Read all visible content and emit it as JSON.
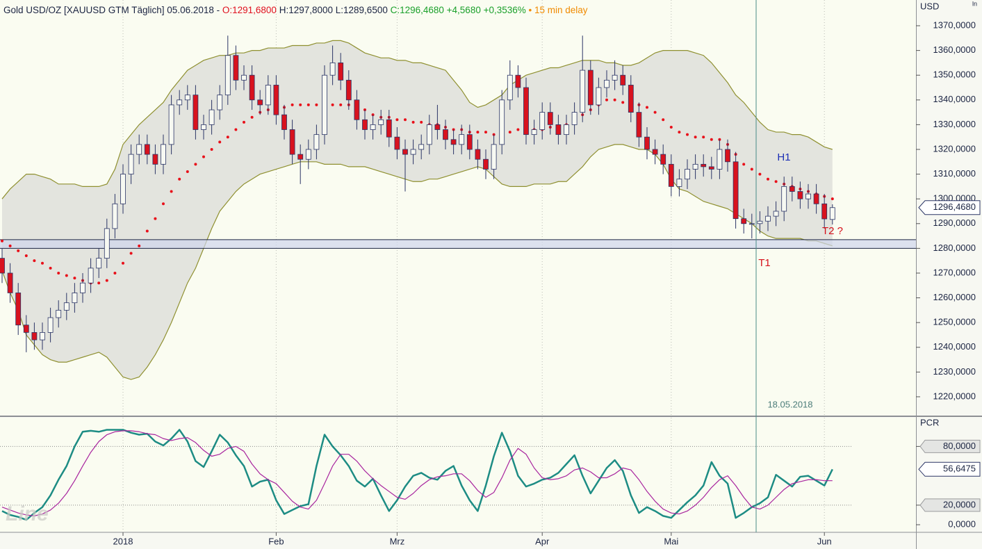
{
  "header": {
    "instrument": "Gold USD/OZ [XAUUSD GTM Täglich] 05.06.2018 - ",
    "open": "O:1291,6800 ",
    "high_low": "H:1297,8000 L:1289,6500 ",
    "change": "C:1296,4680 +4,5680 +0,3536% ",
    "delay": "• 15 min delay"
  },
  "axis_mode_label": "ln",
  "watermark": "Line",
  "annotations": {
    "h1": "H1",
    "t1": "T1",
    "t2": "T2 ?",
    "date": "18.05.2018"
  },
  "chart_data": [
    {
      "type": "candlestick",
      "y_axis_label": "USD",
      "categories": [
        null,
        null,
        null,
        null,
        null,
        null,
        null,
        null,
        null,
        null,
        null,
        null,
        null,
        null,
        null,
        "2018",
        null,
        null,
        null,
        null,
        null,
        null,
        null,
        null,
        null,
        null,
        null,
        null,
        null,
        null,
        null,
        null,
        null,
        null,
        "Feb",
        null,
        null,
        null,
        null,
        null,
        null,
        null,
        null,
        null,
        null,
        null,
        null,
        null,
        null,
        "Mrz",
        null,
        null,
        null,
        null,
        null,
        null,
        null,
        null,
        null,
        null,
        null,
        null,
        null,
        null,
        null,
        null,
        null,
        "Apr",
        null,
        null,
        null,
        null,
        null,
        null,
        null,
        null,
        null,
        null,
        null,
        null,
        null,
        null,
        null,
        "Mai",
        null,
        null,
        null,
        null,
        null,
        null,
        null,
        null,
        null,
        null,
        null,
        null,
        null,
        null,
        null,
        null,
        null,
        null,
        "Jun",
        null
      ],
      "open": [
        1276,
        1270,
        1262,
        1249,
        1246,
        1243,
        1246,
        1252,
        1255,
        1258,
        1262,
        1266,
        1272,
        1276,
        1288,
        1298,
        1310,
        1318,
        1322,
        1318,
        1314,
        1322,
        1338,
        1340,
        1342,
        1328,
        1330,
        1336,
        1342,
        1358,
        1348,
        1350,
        1340,
        1338,
        1346,
        1334,
        1328,
        1318,
        1316,
        1320,
        1326,
        1350,
        1355,
        1348,
        1340,
        1332,
        1328,
        1330,
        1332,
        1325,
        1320,
        1318,
        1320,
        1322,
        1330,
        1328,
        1324,
        1322,
        1326,
        1320,
        1316,
        1312,
        1322,
        1340,
        1350,
        1345,
        1326,
        1328,
        1335,
        1330,
        1326,
        1330,
        1335,
        1352,
        1338,
        1345,
        1348,
        1350,
        1346,
        1335,
        1325,
        1320,
        1318,
        1314,
        1305,
        1308,
        1312,
        1314,
        1313,
        1312,
        1320,
        1315,
        1292,
        1290,
        1290,
        1291,
        1293,
        1295,
        1305,
        1303,
        1300,
        1302,
        1298,
        1291.68
      ],
      "high": [
        1280,
        1274,
        1266,
        1253,
        1250,
        1250,
        1256,
        1259,
        1262,
        1266,
        1270,
        1276,
        1280,
        1292,
        1302,
        1314,
        1322,
        1326,
        1326,
        1322,
        1326,
        1342,
        1344,
        1346,
        1346,
        1334,
        1340,
        1346,
        1366,
        1362,
        1354,
        1354,
        1344,
        1350,
        1350,
        1338,
        1332,
        1322,
        1324,
        1330,
        1354,
        1362,
        1359,
        1352,
        1344,
        1336,
        1334,
        1336,
        1336,
        1329,
        1324,
        1324,
        1326,
        1334,
        1338,
        1332,
        1328,
        1330,
        1330,
        1324,
        1320,
        1326,
        1344,
        1356,
        1354,
        1349,
        1332,
        1339,
        1339,
        1334,
        1334,
        1339,
        1366,
        1356,
        1349,
        1352,
        1356,
        1354,
        1350,
        1339,
        1329,
        1324,
        1322,
        1318,
        1312,
        1316,
        1318,
        1318,
        1317,
        1324,
        1324,
        1319,
        1296,
        1294,
        1295,
        1297,
        1299,
        1309,
        1309,
        1307,
        1306,
        1306,
        1302,
        1297.8
      ],
      "low": [
        1266,
        1258,
        1245,
        1238,
        1239,
        1239,
        1242,
        1248,
        1251,
        1254,
        1258,
        1262,
        1268,
        1272,
        1284,
        1294,
        1306,
        1314,
        1314,
        1310,
        1310,
        1318,
        1334,
        1336,
        1324,
        1324,
        1326,
        1332,
        1338,
        1344,
        1344,
        1336,
        1334,
        1334,
        1330,
        1324,
        1314,
        1306,
        1312,
        1316,
        1322,
        1346,
        1344,
        1336,
        1328,
        1324,
        1324,
        1326,
        1321,
        1316,
        1303,
        1314,
        1316,
        1318,
        1324,
        1320,
        1318,
        1318,
        1316,
        1312,
        1308,
        1308,
        1318,
        1336,
        1341,
        1322,
        1322,
        1324,
        1326,
        1322,
        1322,
        1326,
        1331,
        1334,
        1334,
        1341,
        1344,
        1342,
        1331,
        1321,
        1316,
        1314,
        1310,
        1301,
        1301,
        1304,
        1308,
        1309,
        1308,
        1308,
        1311,
        1288,
        1286,
        1284,
        1286,
        1287,
        1289,
        1291,
        1299,
        1296,
        1296,
        1294,
        1288,
        1289.65
      ],
      "close": [
        1270,
        1262,
        1249,
        1246,
        1243,
        1246,
        1252,
        1255,
        1258,
        1262,
        1266,
        1272,
        1276,
        1288,
        1298,
        1310,
        1318,
        1322,
        1318,
        1314,
        1322,
        1338,
        1340,
        1342,
        1328,
        1330,
        1336,
        1342,
        1358,
        1348,
        1350,
        1340,
        1338,
        1346,
        1334,
        1328,
        1318,
        1316,
        1320,
        1326,
        1350,
        1355,
        1348,
        1340,
        1332,
        1328,
        1330,
        1332,
        1325,
        1320,
        1318,
        1320,
        1322,
        1330,
        1328,
        1324,
        1322,
        1326,
        1320,
        1316,
        1312,
        1322,
        1340,
        1350,
        1345,
        1326,
        1328,
        1335,
        1330,
        1326,
        1330,
        1335,
        1352,
        1338,
        1345,
        1348,
        1350,
        1346,
        1335,
        1325,
        1320,
        1318,
        1314,
        1305,
        1308,
        1312,
        1314,
        1313,
        1312,
        1320,
        1315,
        1292,
        1290,
        1290,
        1291,
        1293,
        1295,
        1305,
        1303,
        1300,
        1302,
        1298,
        1291.9,
        1296.468
      ],
      "up_color": "#f7f9f2",
      "down_color": "#d8121e",
      "outline_color": "#2b3566",
      "bands": {
        "upper": [
          1300,
          1304,
          1307,
          1310,
          1310,
          1309,
          1308,
          1306,
          1306,
          1306,
          1305,
          1305,
          1305,
          1306,
          1312,
          1322,
          1326,
          1330,
          1333,
          1336,
          1339,
          1344,
          1348,
          1352,
          1354,
          1356,
          1357,
          1358,
          1358,
          1359,
          1359,
          1360,
          1360,
          1361,
          1361,
          1361,
          1362,
          1362,
          1362,
          1363,
          1363,
          1364,
          1364,
          1363,
          1361,
          1359,
          1358,
          1357,
          1357,
          1356,
          1356,
          1355,
          1355,
          1354,
          1353,
          1352,
          1348,
          1344,
          1339,
          1337,
          1338,
          1340,
          1342,
          1346,
          1348,
          1350,
          1351,
          1352,
          1353,
          1353,
          1354,
          1355,
          1356,
          1356,
          1356,
          1355,
          1355,
          1354,
          1354,
          1355,
          1357,
          1359,
          1360,
          1360,
          1360,
          1360,
          1359,
          1358,
          1355,
          1351,
          1347,
          1342,
          1339,
          1335,
          1331,
          1328,
          1327,
          1327,
          1326,
          1326,
          1325,
          1323,
          1321,
          1320
        ],
        "middle": [
          1283,
          1281,
          1279,
          1277,
          1275,
          1274,
          1272,
          1270,
          1269,
          1268,
          1267,
          1266,
          1266,
          1267,
          1270,
          1274,
          1278,
          1281,
          1287,
          1292,
          1298,
          1303,
          1308,
          1311,
          1314,
          1317,
          1320,
          1323,
          1325,
          1328,
          1331,
          1333,
          1335,
          1336,
          1337,
          1337,
          1338,
          1338,
          1338,
          1338,
          1338,
          1338,
          1338,
          1338,
          1337,
          1336,
          1334,
          1333,
          1333,
          1332,
          1332,
          1331,
          1331,
          1330,
          1330,
          1329,
          1328,
          1328,
          1327,
          1327,
          1327,
          1326,
          1327,
          1327,
          1328,
          1328,
          1328,
          1328,
          1329,
          1329,
          1330,
          1332,
          1334,
          1336,
          1338,
          1340,
          1340,
          1339,
          1339,
          1338,
          1337,
          1335,
          1332,
          1329,
          1327,
          1326,
          1325,
          1325,
          1324,
          1324,
          1322,
          1318,
          1314,
          1312,
          1310,
          1308,
          1307,
          1306,
          1305,
          1304,
          1303,
          1302,
          1301,
          1300
        ],
        "lower": [
          1271,
          1262,
          1255,
          1245,
          1241,
          1237,
          1235,
          1234,
          1234,
          1235,
          1236,
          1237,
          1238,
          1236,
          1232,
          1228,
          1227,
          1228,
          1232,
          1237,
          1243,
          1250,
          1258,
          1266,
          1272,
          1280,
          1288,
          1295,
          1299,
          1303,
          1306,
          1308,
          1310,
          1311,
          1312,
          1313,
          1314,
          1315,
          1315,
          1315,
          1314,
          1314,
          1314,
          1313,
          1313,
          1313,
          1312,
          1311,
          1310,
          1309,
          1308,
          1307,
          1307,
          1308,
          1308,
          1309,
          1310,
          1311,
          1312,
          1313,
          1312,
          1309,
          1306,
          1305,
          1305,
          1305,
          1306,
          1306,
          1306,
          1307,
          1307,
          1310,
          1313,
          1317,
          1320,
          1321,
          1322,
          1322,
          1321,
          1320,
          1320,
          1318,
          1314,
          1308,
          1304,
          1303,
          1301,
          1299,
          1298,
          1297,
          1296,
          1294,
          1292,
          1290,
          1287,
          1285,
          1284,
          1284,
          1284,
          1284,
          1283,
          1283,
          1282,
          1281
        ],
        "line_color": "#8f9030",
        "fill_color": "#e3e4de",
        "middle_color": "#e8101a"
      },
      "zone": [
        1280,
        1283.5
      ],
      "zone_color": "#cfd6ec",
      "zone_line_color": "#1b2442",
      "last_label": {
        "value": 1296.468,
        "label": "1296,4680"
      },
      "ylim": [
        1212.4,
        1380.4
      ],
      "yticks": [
        {
          "value": 1220,
          "label": "1220,0000"
        },
        {
          "value": 1230,
          "label": "1230,0000"
        },
        {
          "value": 1240,
          "label": "1240,0000"
        },
        {
          "value": 1250,
          "label": "1250,0000"
        },
        {
          "value": 1260,
          "label": "1260,0000"
        },
        {
          "value": 1270,
          "label": "1270,0000"
        },
        {
          "value": 1280,
          "label": "1280,0000"
        },
        {
          "value": 1290,
          "label": "1290,0000"
        },
        {
          "value": 1300,
          "label": "1300,0000"
        },
        {
          "value": 1310,
          "label": "1310,0000"
        },
        {
          "value": 1320,
          "label": "1320,0000"
        },
        {
          "value": 1330,
          "label": "1330,0000"
        },
        {
          "value": 1340,
          "label": "1340,0000"
        },
        {
          "value": 1350,
          "label": "1350,0000"
        },
        {
          "value": 1360,
          "label": "1360,0000"
        },
        {
          "value": 1370,
          "label": "1370,0000"
        }
      ]
    },
    {
      "type": "line",
      "y_axis_label": "PCR",
      "series": [
        {
          "color": "#1d8c84",
          "width": 2.5,
          "values": [
            14,
            10,
            8,
            5,
            12,
            18,
            30,
            46,
            60,
            80,
            95,
            96,
            95,
            97,
            97,
            97,
            94,
            92,
            93,
            85,
            81,
            88,
            97,
            85,
            65,
            59,
            75,
            92,
            84,
            71,
            60,
            39,
            44,
            46,
            25,
            11,
            15,
            19,
            21,
            60,
            92,
            80,
            71,
            60,
            45,
            39,
            47,
            30,
            14,
            25,
            39,
            50,
            53,
            48,
            46,
            55,
            60,
            40,
            25,
            14,
            40,
            70,
            94,
            75,
            50,
            39,
            42,
            46,
            48,
            53,
            62,
            71,
            50,
            32,
            45,
            58,
            66,
            55,
            30,
            12,
            18,
            14,
            9,
            7,
            15,
            23,
            30,
            40,
            64,
            50,
            42,
            7,
            12,
            18,
            22,
            28,
            51,
            45,
            39,
            49,
            50,
            45,
            40,
            56.6475
          ]
        },
        {
          "color": "#a8249e",
          "width": 1.2,
          "values": [
            18,
            15,
            12,
            10,
            9,
            11,
            15,
            22,
            32,
            45,
            60,
            74,
            85,
            92,
            95,
            96,
            96,
            95,
            93,
            92,
            88,
            86,
            88,
            89,
            84,
            76,
            70,
            72,
            78,
            80,
            75,
            62,
            52,
            46,
            42,
            33,
            24,
            18,
            16,
            25,
            42,
            60,
            72,
            72,
            65,
            55,
            47,
            40,
            34,
            28,
            26,
            32,
            40,
            46,
            49,
            50,
            52,
            52,
            45,
            35,
            28,
            33,
            48,
            66,
            78,
            72,
            58,
            48,
            46,
            47,
            50,
            56,
            58,
            54,
            48,
            48,
            52,
            58,
            56,
            46,
            34,
            24,
            16,
            12,
            11,
            14,
            20,
            28,
            38,
            46,
            50,
            40,
            28,
            18,
            16,
            20,
            28,
            36,
            42,
            44,
            46,
            46,
            45,
            45
          ]
        }
      ],
      "levels": [
        20,
        80
      ],
      "last_label": {
        "value": 56.6475,
        "label": "56,6475"
      },
      "ylim": [
        -7.06,
        109.4
      ],
      "yticks": [
        {
          "value": 0,
          "label": "0,0000"
        },
        {
          "value": 20,
          "label": "20,0000"
        },
        {
          "value": 80,
          "label": "80,0000"
        }
      ]
    }
  ]
}
